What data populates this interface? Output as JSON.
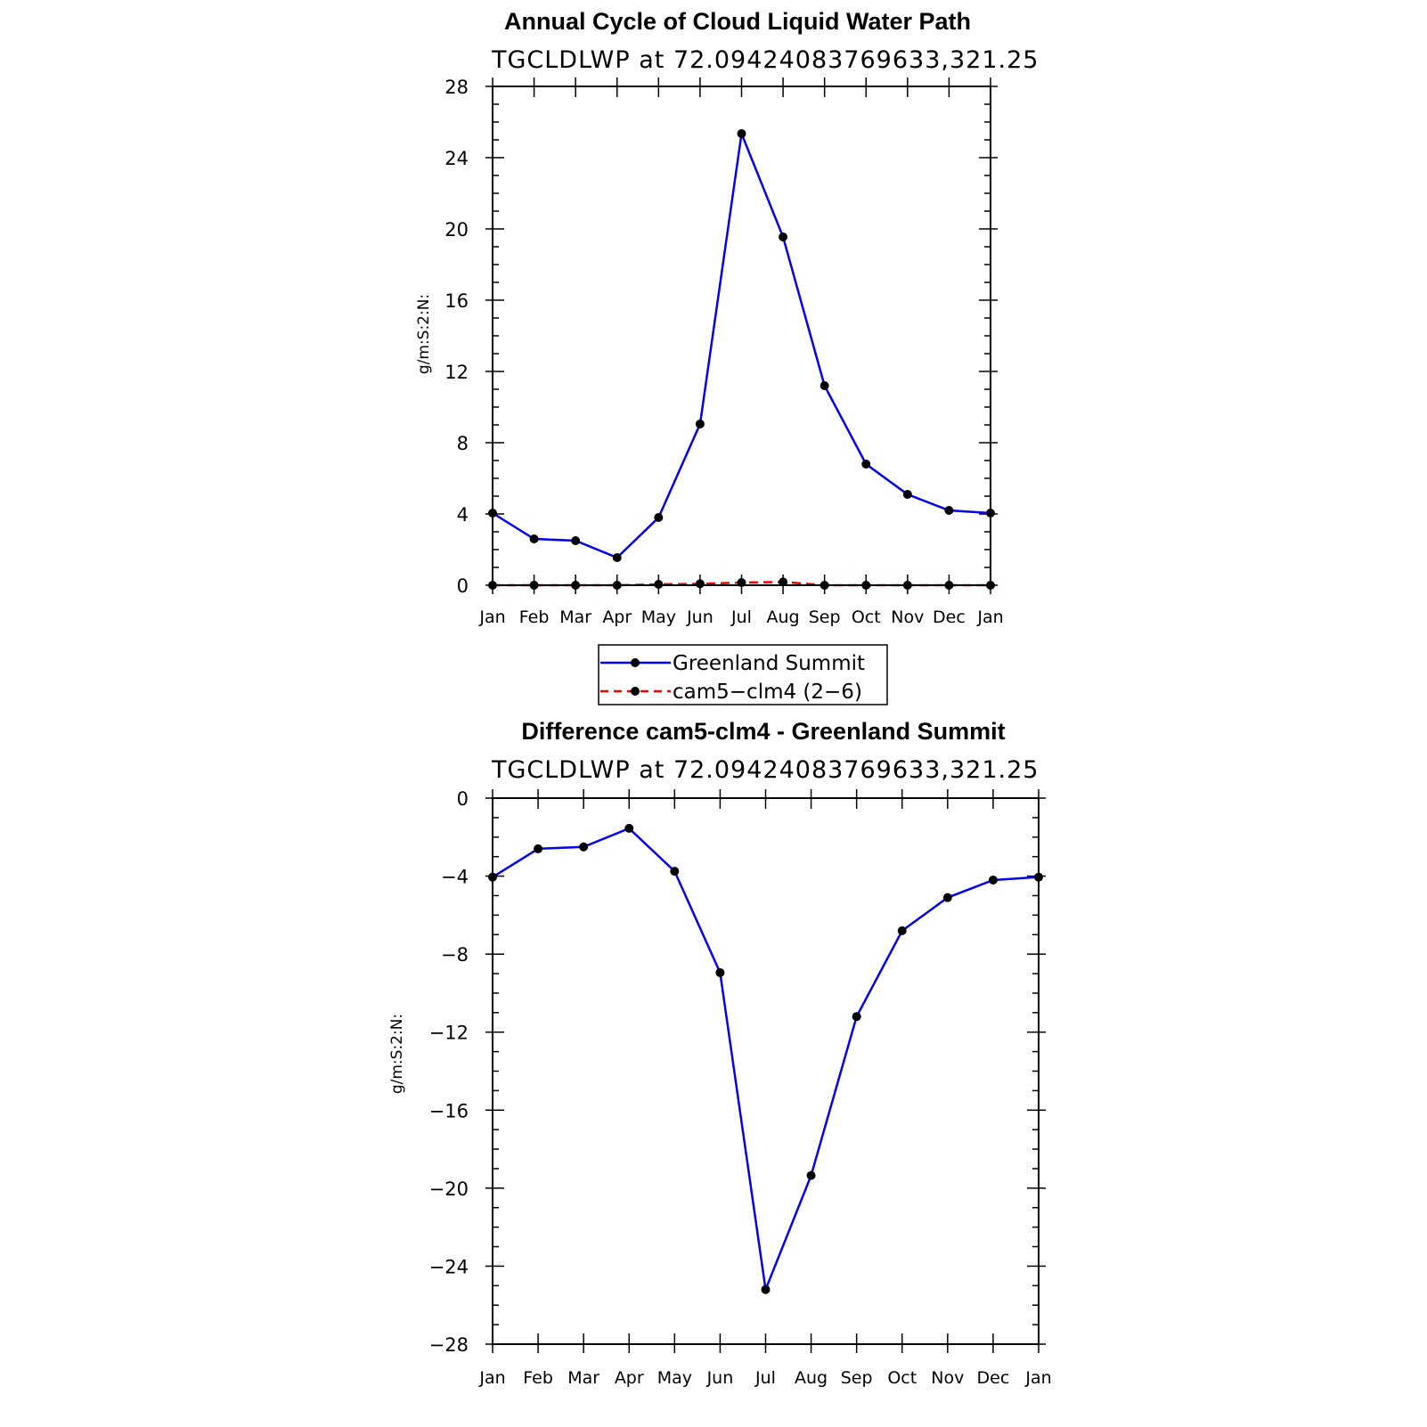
{
  "chart_data": [
    {
      "type": "line",
      "title": "Annual Cycle of Cloud Liquid Water Path",
      "subtitle": "TGCLDLWP  at  72.09424083769633,321.25",
      "ylabel": "g/m:S:2:N:",
      "xlabel": "",
      "ylim": [
        0,
        28
      ],
      "yticks": [
        "0",
        "4",
        "8",
        "12",
        "16",
        "20",
        "24",
        "28"
      ],
      "categories": [
        "Jan",
        "Feb",
        "Mar",
        "Apr",
        "May",
        "Jun",
        "Jul",
        "Aug",
        "Sep",
        "Oct",
        "Nov",
        "Dec",
        "Jan"
      ],
      "grid": false,
      "series": [
        {
          "name": "Greenland Summit",
          "color": "#0000ee",
          "dash": "solid",
          "values": [
            4.05,
            2.6,
            2.5,
            1.55,
            3.8,
            9.05,
            25.35,
            19.55,
            11.2,
            6.8,
            5.1,
            4.2,
            4.05
          ]
        },
        {
          "name": "cam5−clm4 (2−6)",
          "color": "#ee0000",
          "dash": "dashed",
          "values": [
            0.0,
            0.0,
            0.0,
            0.0,
            0.05,
            0.08,
            0.15,
            0.18,
            0.0,
            0.0,
            0.0,
            0.0,
            0.0
          ]
        }
      ],
      "legend": {
        "placement": "below",
        "entries": [
          "Greenland Summit",
          "cam5−clm4 (2−6)"
        ]
      }
    },
    {
      "type": "line",
      "title": "Difference cam5-clm4 - Greenland Summit",
      "subtitle": "TGCLDLWP  at  72.09424083769633,321.25",
      "ylabel": "g/m:S:2:N:",
      "xlabel": "",
      "ylim": [
        -28,
        0
      ],
      "yticks": [
        "−28",
        "−24",
        "−20",
        "−16",
        "−12",
        "−8",
        "−4",
        "0"
      ],
      "categories": [
        "Jan",
        "Feb",
        "Mar",
        "Apr",
        "May",
        "Jun",
        "Jul",
        "Aug",
        "Sep",
        "Oct",
        "Nov",
        "Dec",
        "Jan"
      ],
      "grid": false,
      "series": [
        {
          "color": "#0000ee",
          "dash": "solid",
          "values": [
            -4.05,
            -2.6,
            -2.5,
            -1.55,
            -3.75,
            -8.95,
            -25.2,
            -19.35,
            -11.2,
            -6.8,
            -5.1,
            -4.2,
            -4.05
          ]
        }
      ]
    }
  ]
}
